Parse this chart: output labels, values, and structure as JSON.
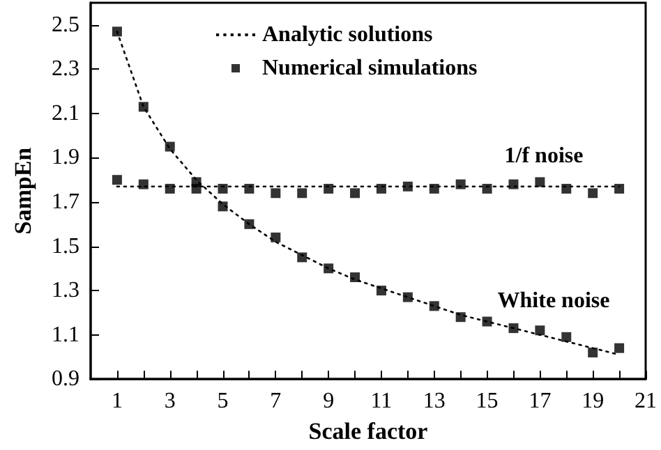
{
  "chart_data": {
    "type": "line",
    "xlabel": "Scale factor",
    "ylabel": "SampEn",
    "x": [
      1,
      2,
      3,
      4,
      5,
      6,
      7,
      8,
      9,
      10,
      11,
      12,
      13,
      14,
      15,
      16,
      17,
      18,
      19,
      20
    ],
    "series": [
      {
        "name": "Analytic solutions",
        "type": "line",
        "color": "#000000",
        "line_style": "dotted",
        "marker": "none",
        "values": [
          2.47,
          2.13,
          1.94,
          1.8,
          1.69,
          1.6,
          1.52,
          1.46,
          1.4,
          1.35,
          1.31,
          1.27,
          1.23,
          1.19,
          1.16,
          1.13,
          1.1,
          1.07,
          1.04,
          1.01
        ]
      },
      {
        "type": "line",
        "color": "#000000",
        "line_style": "dotted",
        "marker": "none",
        "values": [
          1.77,
          1.77,
          1.77,
          1.77,
          1.77,
          1.77,
          1.77,
          1.77,
          1.77,
          1.77,
          1.77,
          1.77,
          1.77,
          1.77,
          1.77,
          1.77,
          1.77,
          1.77,
          1.77,
          1.77
        ]
      },
      {
        "name": "Numerical simulations",
        "type": "scatter",
        "color": "#000000",
        "marker": "square",
        "values": [
          2.47,
          2.13,
          1.95,
          1.79,
          1.68,
          1.6,
          1.54,
          1.45,
          1.4,
          1.36,
          1.3,
          1.27,
          1.23,
          1.18,
          1.16,
          1.13,
          1.12,
          1.09,
          1.02,
          1.04
        ]
      },
      {
        "type": "scatter",
        "color": "#000000",
        "marker": "square",
        "values": [
          1.8,
          1.78,
          1.76,
          1.76,
          1.76,
          1.76,
          1.74,
          1.74,
          1.76,
          1.74,
          1.76,
          1.77,
          1.76,
          1.78,
          1.76,
          1.78,
          1.79,
          1.76,
          1.74,
          1.76
        ]
      }
    ],
    "annotations": [
      "1/f noise",
      "White noise"
    ],
    "xlim": [
      0,
      21
    ],
    "xticks": [
      1,
      {
        "value": 2,
        "label": null
      },
      3,
      {
        "value": 4,
        "label": null
      },
      5,
      {
        "value": 6,
        "label": null
      },
      7,
      {
        "value": 8,
        "label": null
      },
      9,
      {
        "value": 10,
        "label": null
      },
      11,
      {
        "value": 12,
        "label": null
      },
      13,
      {
        "value": 14,
        "label": null
      },
      15,
      {
        "value": 16,
        "label": null
      },
      17,
      {
        "value": 18,
        "label": null
      },
      19,
      {
        "value": 20,
        "label": null
      },
      21
    ],
    "ylim": [
      0.9,
      2.6
    ],
    "yticks": [
      0.9,
      1.1,
      1.3,
      1.5,
      1.7,
      1.9,
      2.1,
      2.3,
      2.5
    ],
    "grid": false,
    "legend": "top"
  }
}
